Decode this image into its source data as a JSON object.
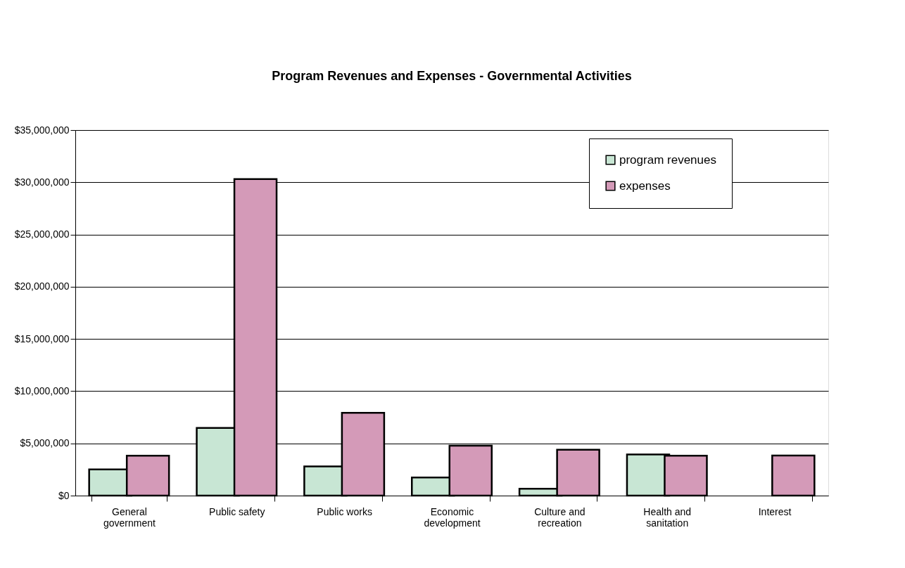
{
  "chart_data": {
    "type": "bar",
    "title": "Program Revenues and Expenses - Governmental Activities",
    "categories": [
      "General government",
      "Public safety",
      "Public works",
      "Economic development",
      "Culture and recreation",
      "Health and sanitation",
      "Interest"
    ],
    "series": [
      {
        "name": "program revenues",
        "color": "#c8e6d4",
        "values": [
          2510000,
          6470000,
          2800000,
          1740000,
          650000,
          3940000,
          null
        ]
      },
      {
        "name": "expenses",
        "color": "#d49ab8",
        "values": [
          3820000,
          30310000,
          7920000,
          4780000,
          4400000,
          3820000,
          3840000
        ]
      }
    ],
    "ylim": [
      0,
      35000000
    ],
    "yticks": [
      {
        "value": 0,
        "label": "$0"
      },
      {
        "value": 5000000,
        "label": "$5,000,000"
      },
      {
        "value": 10000000,
        "label": "$10,000,000"
      },
      {
        "value": 15000000,
        "label": "$15,000,000"
      },
      {
        "value": 20000000,
        "label": "$20,000,000"
      },
      {
        "value": 25000000,
        "label": "$25,000,000"
      },
      {
        "value": 30000000,
        "label": "$30,000,000"
      },
      {
        "value": 35000000,
        "label": "$35,000,000"
      }
    ],
    "grid": "y",
    "legend": "top right"
  }
}
